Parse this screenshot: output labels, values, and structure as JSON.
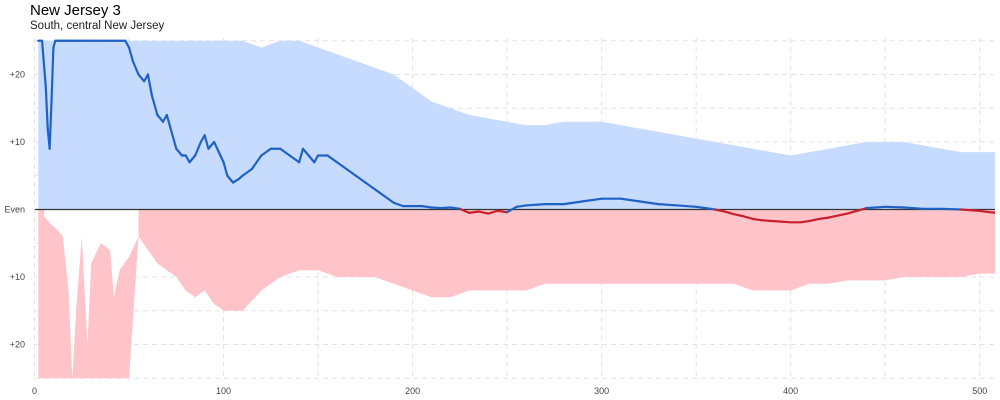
{
  "header": {
    "title": "New Jersey 3",
    "subtitle": "South, central New Jersey"
  },
  "colors": {
    "dem_fill": "#c6dbfd",
    "rep_fill": "#ffc4ca",
    "dem_line": "#1f62c5",
    "rep_line": "#c8202c",
    "grid": "#e3e3e3",
    "zero_line": "#333333"
  },
  "chart_data": {
    "type": "area",
    "title": "New Jersey 3",
    "subtitle": "South, central New Jersey",
    "xlabel": "",
    "ylabel": "",
    "xlim": [
      0,
      510
    ],
    "ylim": [
      -25,
      25
    ],
    "grid": true,
    "legend": "none",
    "x_ticks": [
      "0",
      "100",
      "200",
      "300",
      "400",
      "500"
    ],
    "y_ticks": [
      {
        "value": 20,
        "label": "+20"
      },
      {
        "value": 10,
        "label": "+10"
      },
      {
        "value": 0,
        "label": "Even"
      },
      {
        "value": -10,
        "label": "+10"
      },
      {
        "value": -20,
        "label": "+20"
      }
    ],
    "series": [
      {
        "role": "upper_band",
        "x": [
          2,
          5,
          8,
          10,
          12,
          15,
          18,
          20,
          25,
          30,
          35,
          40,
          45,
          50,
          60,
          70,
          80,
          90,
          100,
          110,
          120,
          130,
          140,
          150,
          160,
          170,
          180,
          190,
          200,
          210,
          220,
          230,
          240,
          250,
          260,
          270,
          280,
          290,
          300,
          310,
          320,
          330,
          340,
          350,
          360,
          370,
          380,
          390,
          400,
          410,
          420,
          430,
          440,
          450,
          460,
          470,
          480,
          490,
          500,
          510
        ],
        "y": [
          25,
          25,
          25,
          25,
          25,
          25,
          25,
          25,
          25,
          25,
          25,
          25,
          25,
          25,
          25,
          25,
          25,
          25,
          25,
          25,
          24,
          25,
          25,
          24,
          23,
          22,
          21,
          20,
          18,
          16,
          15,
          14,
          13.5,
          13,
          12.5,
          12.5,
          13,
          13,
          13,
          12.5,
          12,
          11.5,
          11,
          10.5,
          10,
          9.5,
          9,
          8.5,
          8,
          8.5,
          9,
          9.5,
          10,
          10,
          10,
          9.5,
          9,
          8.5,
          8.5,
          8.5
        ]
      },
      {
        "role": "lower_band",
        "x": [
          2,
          5,
          8,
          10,
          12,
          15,
          18,
          20,
          22,
          25,
          28,
          30,
          35,
          40,
          45,
          50,
          55,
          60,
          65,
          70,
          75,
          80,
          85,
          90,
          95,
          100,
          105,
          110,
          120,
          130,
          140,
          150,
          160,
          170,
          180,
          190,
          200,
          210,
          220,
          230,
          240,
          250,
          260,
          270,
          280,
          290,
          300,
          310,
          320,
          330,
          340,
          350,
          360,
          370,
          380,
          390,
          400,
          410,
          420,
          430,
          440,
          450,
          460,
          470,
          480,
          490,
          500,
          510
        ],
        "y": [
          -25,
          -25,
          -25,
          -25,
          -25,
          -25,
          -25,
          -25,
          -25,
          -25,
          -25,
          -25,
          -25,
          -25,
          -25,
          -25,
          -4,
          -6,
          -8,
          -9,
          -10,
          -12,
          -13,
          -12,
          -14,
          -15,
          -15,
          -15,
          -12,
          -10,
          -9,
          -9,
          -10,
          -10,
          -10,
          -11,
          -12,
          -13,
          -13,
          -12,
          -12,
          -12,
          -12,
          -11,
          -11,
          -11,
          -11,
          -11,
          -11,
          -11,
          -11,
          -11,
          -11,
          -11,
          -12,
          -12,
          -12,
          -11,
          -11,
          -10.5,
          -10.5,
          -10.5,
          -10,
          -10,
          -10,
          -10,
          -9.5,
          -9.5
        ]
      },
      {
        "role": "lower_band_gap",
        "x": [
          5,
          8,
          12,
          15,
          18,
          20,
          22,
          25,
          28,
          30,
          35,
          40,
          42,
          45,
          50,
          55
        ],
        "y": [
          -1,
          -2,
          -3,
          -4,
          -12,
          -25,
          -15,
          -4,
          -20,
          -8,
          -5,
          -6,
          -13,
          -9,
          -7,
          -4
        ]
      },
      {
        "role": "margin",
        "x": [
          2,
          4,
          6,
          7,
          8,
          9,
          10,
          11,
          12,
          13,
          14,
          15,
          16,
          17,
          18,
          19,
          20,
          22,
          24,
          26,
          28,
          30,
          35,
          40,
          45,
          48,
          50,
          52,
          55,
          58,
          60,
          62,
          65,
          68,
          70,
          72,
          75,
          78,
          80,
          82,
          85,
          88,
          90,
          92,
          95,
          100,
          102,
          105,
          108,
          110,
          115,
          120,
          125,
          130,
          135,
          140,
          142,
          145,
          148,
          150,
          155,
          160,
          165,
          170,
          175,
          180,
          185,
          190,
          195,
          200,
          205,
          210,
          215,
          220,
          225,
          230,
          235,
          240,
          245,
          250,
          255,
          260,
          270,
          280,
          290,
          300,
          310,
          320,
          330,
          340,
          350,
          355,
          360,
          365,
          370,
          375,
          380,
          385,
          390,
          395,
          400,
          405,
          410,
          415,
          420,
          430,
          440,
          450,
          460,
          470,
          480,
          490,
          500,
          505,
          510
        ],
        "y": [
          25,
          25,
          18,
          12,
          9,
          16,
          24,
          25,
          25,
          25,
          25,
          25,
          25,
          25,
          25,
          25,
          25,
          25,
          25,
          25,
          25,
          25,
          25,
          25,
          25,
          25,
          24,
          22,
          20,
          19,
          20,
          17,
          14,
          13,
          14,
          12,
          9,
          8,
          8,
          7,
          8,
          10,
          11,
          9,
          10,
          7,
          5,
          4,
          4.5,
          5,
          6,
          8,
          9,
          9,
          8,
          7,
          9,
          8,
          7,
          8,
          8,
          7,
          6,
          5,
          4,
          3,
          2,
          1,
          0.5,
          0.5,
          0.5,
          0.3,
          0.2,
          0.3,
          0.1,
          -0.5,
          -0.3,
          -0.6,
          -0.2,
          -0.4,
          0.4,
          0.6,
          0.8,
          0.8,
          1.2,
          1.6,
          1.6,
          1.2,
          0.8,
          0.6,
          0.4,
          0.2,
          0.0,
          -0.3,
          -0.7,
          -1.0,
          -1.4,
          -1.6,
          -1.7,
          -1.8,
          -1.9,
          -1.9,
          -1.7,
          -1.4,
          -1.2,
          -0.6,
          0.2,
          0.4,
          0.3,
          0.1,
          0.1,
          0.0,
          -0.2,
          -0.4,
          -0.5
        ]
      }
    ]
  }
}
